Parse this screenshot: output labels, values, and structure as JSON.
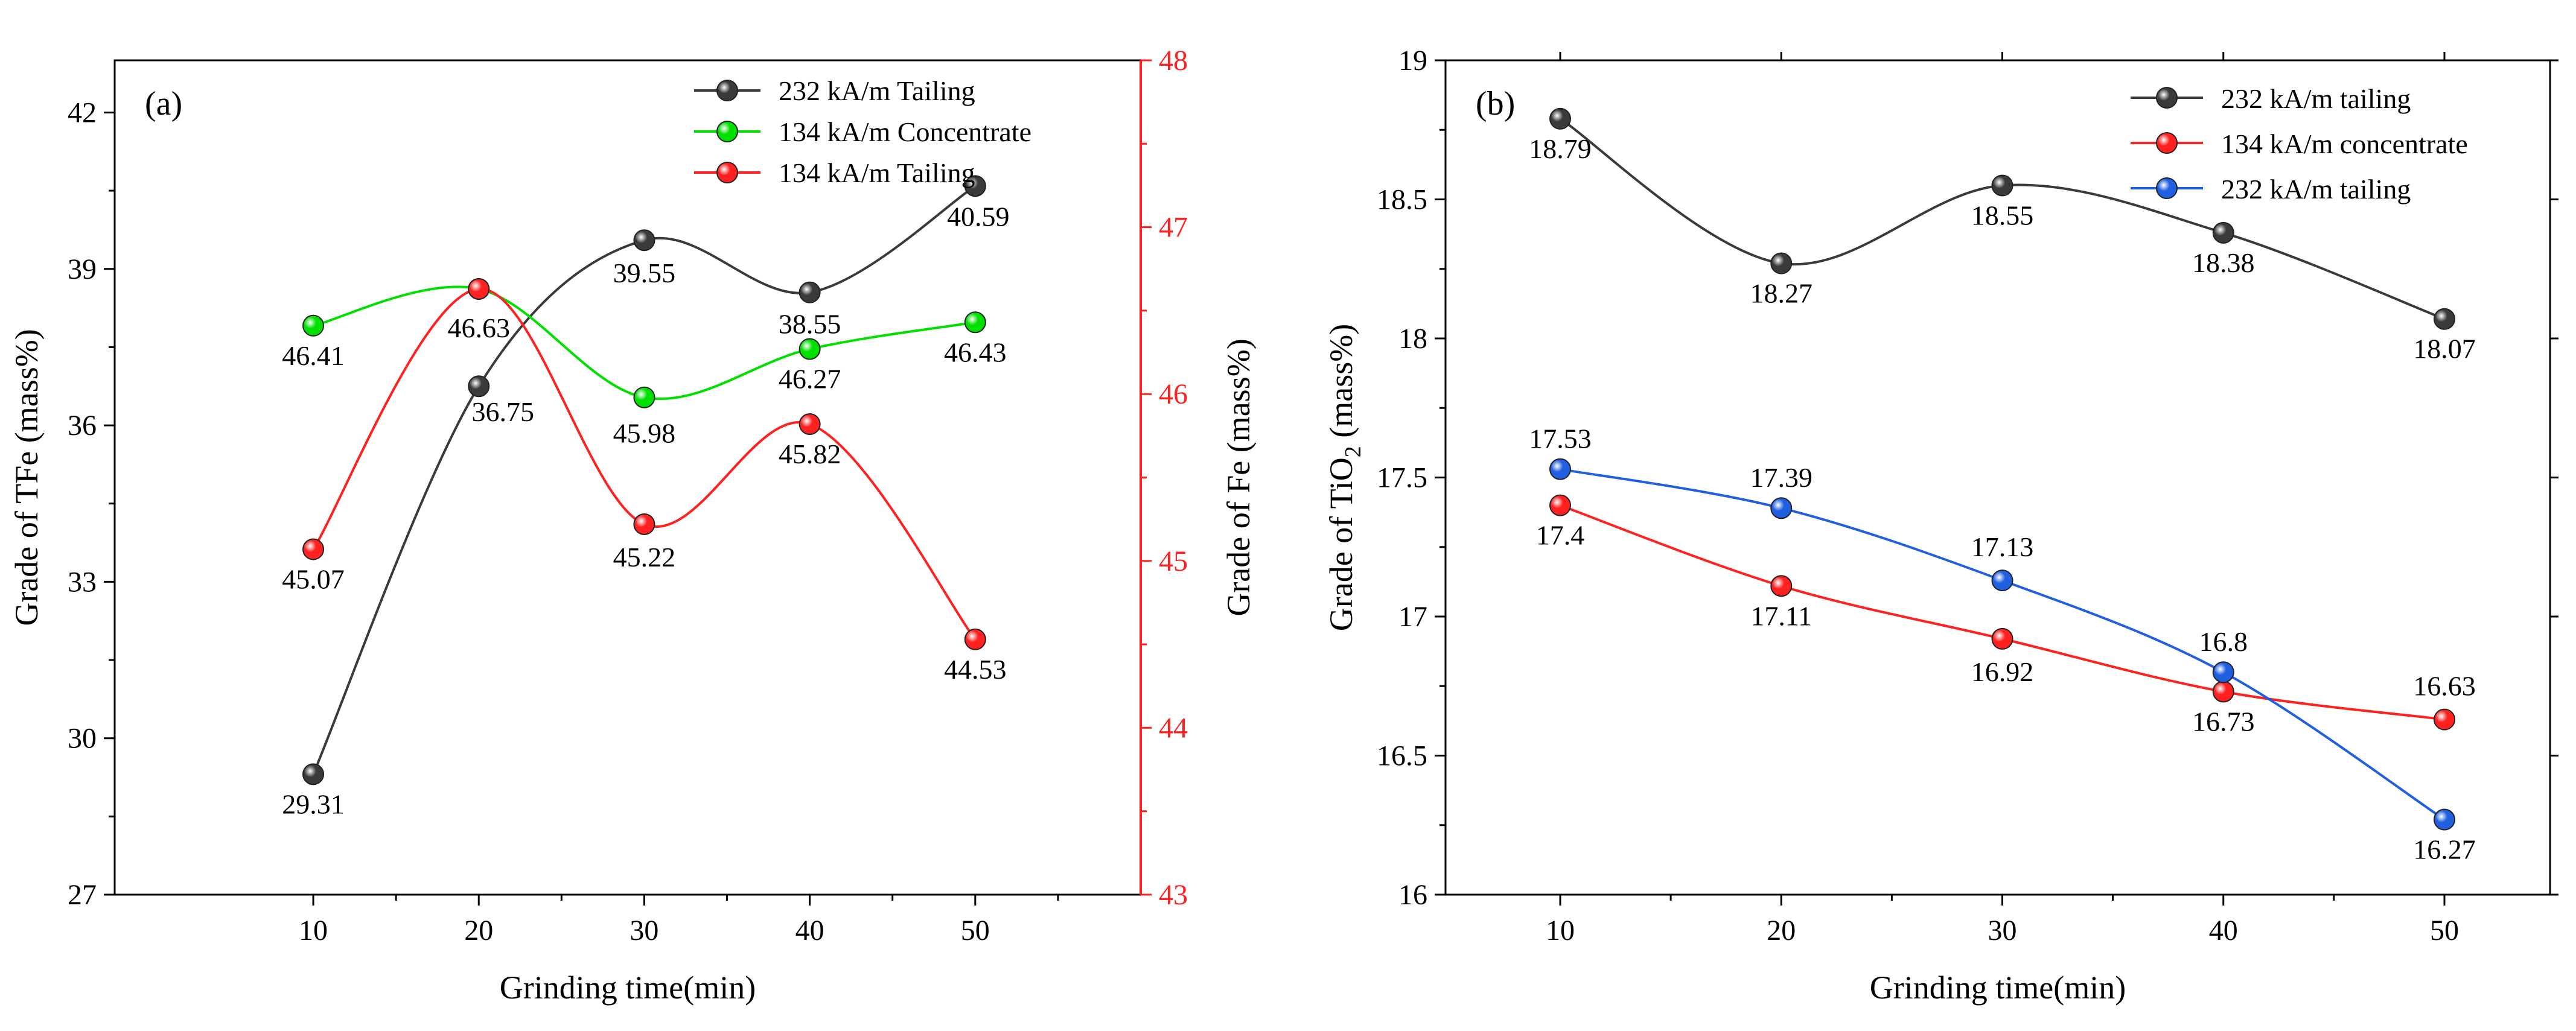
{
  "chart_data": [
    {
      "type": "line",
      "panel_label": "(a)",
      "xlabel": "Grinding time(min)",
      "ylabel_left": "Grade of TFe (mass%)",
      "ylabel_right": "Grade of Fe (mass%)",
      "x": [
        10,
        20,
        30,
        40,
        50
      ],
      "xlim": [
        -2,
        60
      ],
      "xticks": [
        "10",
        "20",
        "30",
        "40",
        "50"
      ],
      "ylim_left": [
        27,
        43
      ],
      "yticks_left": [
        "27",
        "30",
        "33",
        "36",
        "39",
        "42"
      ],
      "ylim_right": [
        43,
        48
      ],
      "yticks_right": [
        "43",
        "44",
        "45",
        "46",
        "47",
        "48"
      ],
      "legend_position": "top-right",
      "series": [
        {
          "name": "232 kA/m Tailing",
          "axis": "left",
          "color": "#3a3a3a",
          "values": [
            29.31,
            36.75,
            39.55,
            38.55,
            40.59
          ],
          "labels": [
            "29.31",
            "36.75",
            "39.55",
            "38.55",
            "40.59"
          ]
        },
        {
          "name": "134 kA/m Concentrate",
          "axis": "right",
          "color": "#00e000",
          "values": [
            46.41,
            46.63,
            45.98,
            46.27,
            46.43
          ],
          "labels": [
            "46.41",
            "",
            "45.98",
            "46.27",
            "46.43"
          ]
        },
        {
          "name": "134 kA/m Tailing",
          "axis": "right",
          "color": "#ff2020",
          "values": [
            45.07,
            46.63,
            45.22,
            45.82,
            44.53
          ],
          "labels": [
            "45.07",
            "46.63",
            "45.22",
            "45.82",
            "44.53"
          ]
        }
      ]
    },
    {
      "type": "line",
      "panel_label": "(b)",
      "xlabel": "Grinding time(min)",
      "ylabel_pre": "Grade of TiO",
      "ylabel_sub": "2",
      "ylabel_post": " (mass%)",
      "x": [
        10,
        20,
        30,
        40,
        50
      ],
      "xlim": [
        10,
        50
      ],
      "xticks": [
        "10",
        "20",
        "30",
        "40",
        "50"
      ],
      "ylim": [
        16,
        19
      ],
      "yticks": [
        "16",
        "16.5",
        "17",
        "17.5",
        "18",
        "18.5",
        "19"
      ],
      "legend_position": "top-right",
      "series": [
        {
          "name": "232 kA/m tailing",
          "color": "#3a3a3a",
          "values": [
            18.79,
            18.27,
            18.55,
            18.38,
            18.07
          ],
          "labels": [
            "18.79",
            "18.27",
            "18.55",
            "18.38",
            "18.07"
          ]
        },
        {
          "name": "134 kA/m concentrate",
          "color": "#ff2020",
          "values": [
            17.4,
            17.11,
            16.92,
            16.73,
            16.63
          ],
          "labels": [
            "17.4",
            "17.11",
            "16.92",
            "16.73",
            "16.63"
          ]
        },
        {
          "name": "232 kA/m tailing",
          "color": "#1f5fe0",
          "values": [
            17.53,
            17.39,
            17.13,
            16.8,
            16.27
          ],
          "labels": [
            "17.53",
            "17.39",
            "17.13",
            "16.8",
            "16.27"
          ]
        }
      ]
    }
  ]
}
